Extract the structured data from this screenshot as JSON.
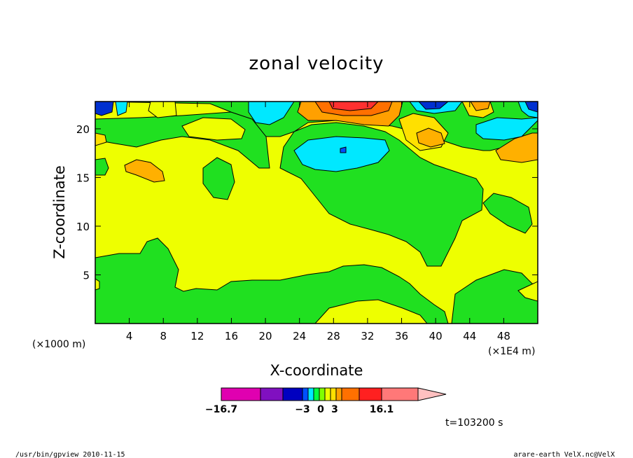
{
  "chart_data": {
    "type": "heatmap",
    "title": "zonal velocity",
    "xlabel": "X-coordinate",
    "ylabel": "Z-coordinate",
    "x_unit_left": "(×1000 m)",
    "x_unit_right": "(×1E4 m)",
    "xlim": [
      0,
      52
    ],
    "ylim": [
      0,
      22.8
    ],
    "x_ticks": [
      4,
      8,
      12,
      16,
      20,
      24,
      28,
      32,
      36,
      40,
      44,
      48
    ],
    "y_ticks": [
      5,
      10,
      15,
      20
    ],
    "colorbar": {
      "labels": [
        "−16.7",
        "−3",
        "0",
        "3",
        "16.1"
      ],
      "colors": [
        "#e000b0",
        "#8010c0",
        "#0000c0",
        "#0050ff",
        "#00e8ff",
        "#00ff40",
        "#80ff00",
        "#eeff00",
        "#ffe000",
        "#ffa000",
        "#ff7000",
        "#ff2020",
        "#ff7878",
        "#ffc0c0"
      ]
    },
    "time_label": "t=103200 s"
  },
  "footer": {
    "left": "/usr/bin/gpview   2010-11-15",
    "right": "arare-earth_VelX.nc@VelX"
  }
}
